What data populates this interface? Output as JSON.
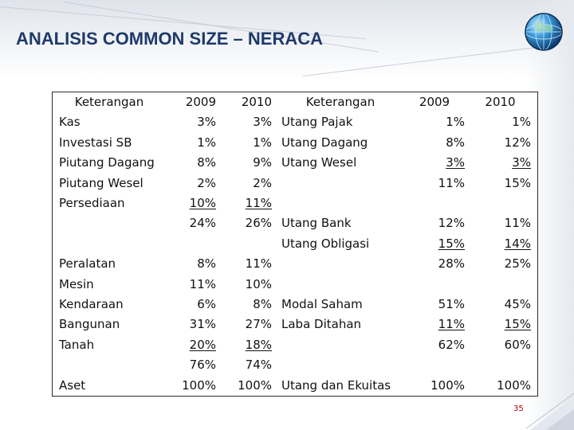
{
  "title": "ANALISIS COMMON SIZE – NERACA",
  "page_number": "35",
  "colors": {
    "title": "#1f3a6b",
    "page_number": "#c00000",
    "border": "#2b2b2b"
  },
  "icons": {
    "logo": "globe-icon"
  },
  "table": {
    "headers": [
      "Keterangan",
      "2009",
      "2010",
      "Keterangan",
      "2009",
      "2010"
    ],
    "rows": [
      [
        "Kas",
        "3%",
        "3%",
        "Utang Pajak",
        "1%",
        "1%"
      ],
      [
        "Investasi SB",
        "1%",
        "1%",
        "Utang Dagang",
        "8%",
        "12%"
      ],
      [
        "Piutang Dagang",
        "8%",
        "9%",
        "Utang Wesel",
        "3%",
        "3%"
      ],
      [
        "Piutang Wesel",
        "2%",
        "2%",
        "",
        "11%",
        "15%"
      ],
      [
        "Persediaan",
        "10%",
        "11%",
        "",
        "",
        ""
      ],
      [
        "",
        "24%",
        "26%",
        "Utang Bank",
        "12%",
        "11%"
      ],
      [
        "",
        "",
        "",
        "Utang Obligasi",
        "15%",
        "14%"
      ],
      [
        "Peralatan",
        "8%",
        "11%",
        "",
        "28%",
        "25%"
      ],
      [
        "Mesin",
        "11%",
        "10%",
        "",
        "",
        ""
      ],
      [
        "Kendaraan",
        "6%",
        "8%",
        "Modal Saham",
        "51%",
        "45%"
      ],
      [
        "Bangunan",
        "31%",
        "27%",
        "Laba Ditahan",
        "11%",
        "15%"
      ],
      [
        "Tanah",
        "20%",
        "18%",
        "",
        "62%",
        "60%"
      ],
      [
        "",
        "76%",
        "74%",
        "",
        "",
        ""
      ],
      [
        "Aset",
        "100%",
        "100%",
        "Utang dan Ekuitas",
        "100%",
        "100%"
      ]
    ]
  }
}
